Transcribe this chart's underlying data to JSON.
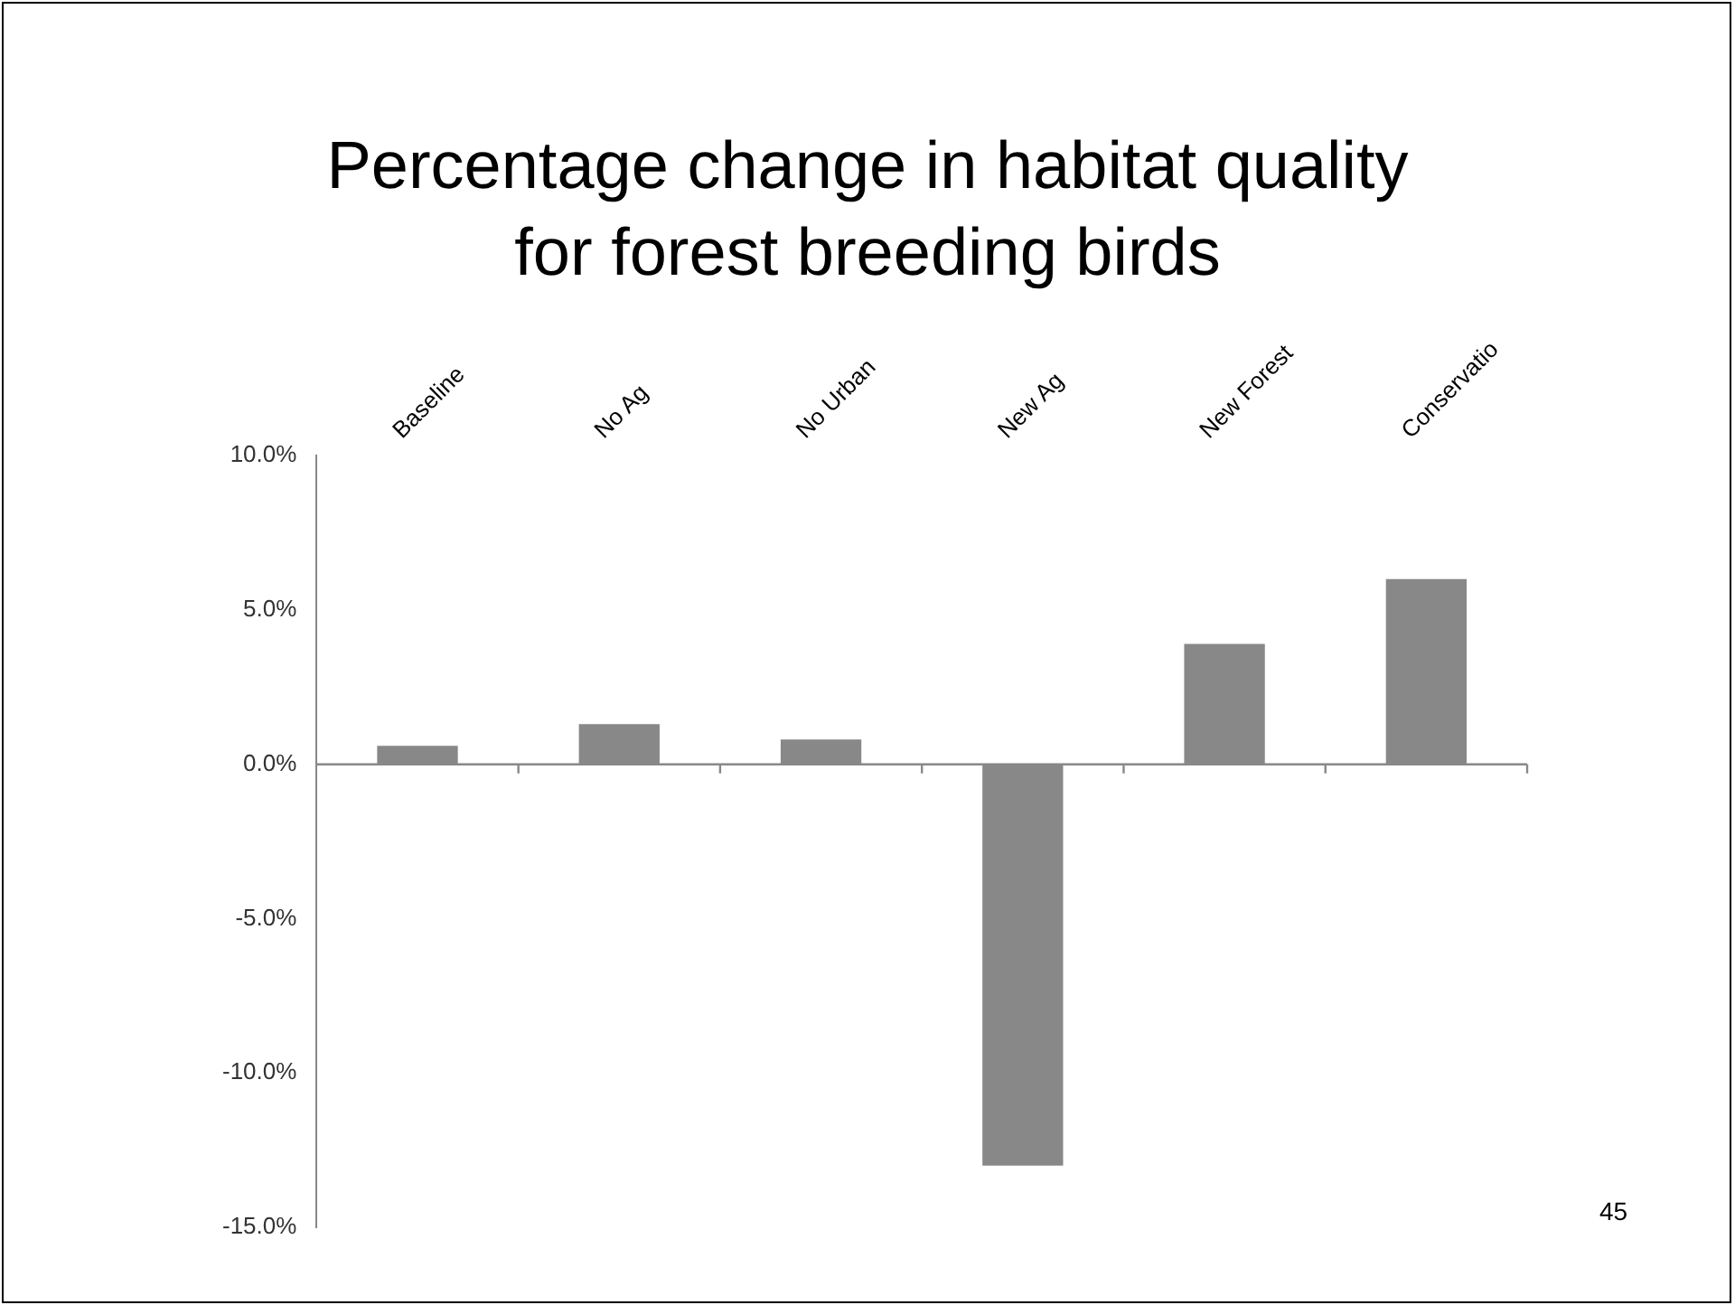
{
  "chart_data": {
    "type": "bar",
    "title": "Percentage change in habitat quality for forest breeding birds",
    "categories": [
      "Baseline",
      "No Ag",
      "No Urban",
      "New Ag",
      "New Forest",
      "Conservatio"
    ],
    "values": [
      0.6,
      1.3,
      0.8,
      -13.0,
      3.9,
      6.0
    ],
    "color": "#888888",
    "ylim": [
      -15,
      10
    ],
    "yticks": [
      {
        "value": -15,
        "label": "-15.0%"
      },
      {
        "value": -10,
        "label": "-10.0%"
      },
      {
        "value": -5,
        "label": "-5.0%"
      },
      {
        "value": 0,
        "label": "0.0%"
      },
      {
        "value": 5,
        "label": "5.0%"
      },
      {
        "value": 10,
        "label": "10.0%"
      }
    ],
    "annotations": [
      "45"
    ]
  }
}
